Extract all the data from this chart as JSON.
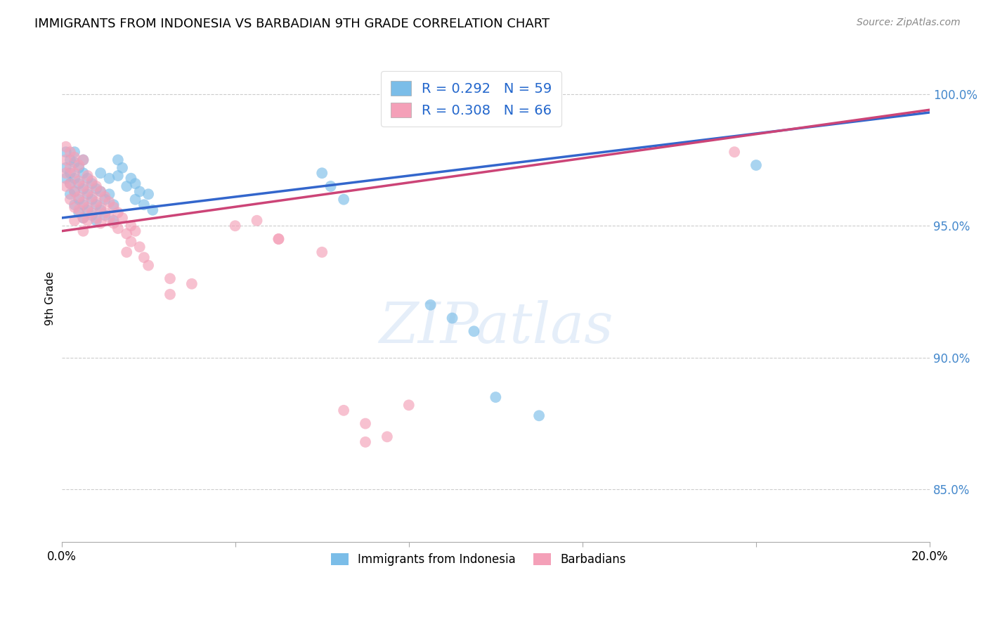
{
  "title": "IMMIGRANTS FROM INDONESIA VS BARBADIAN 9TH GRADE CORRELATION CHART",
  "source": "Source: ZipAtlas.com",
  "ylabel": "9th Grade",
  "yticks": [
    "85.0%",
    "90.0%",
    "95.0%",
    "100.0%"
  ],
  "ytick_vals": [
    0.85,
    0.9,
    0.95,
    1.0
  ],
  "legend_blue": "R = 0.292   N = 59",
  "legend_pink": "R = 0.308   N = 66",
  "legend_label_blue": "Immigrants from Indonesia",
  "legend_label_pink": "Barbadians",
  "blue_color": "#7bbde8",
  "pink_color": "#f4a0b8",
  "trendline_blue": "#3366cc",
  "trendline_pink": "#cc4477",
  "xlim": [
    0.0,
    0.2
  ],
  "ylim": [
    0.83,
    1.015
  ],
  "blue_x": [
    0.001,
    0.001,
    0.001,
    0.002,
    0.002,
    0.002,
    0.002,
    0.003,
    0.003,
    0.003,
    0.003,
    0.003,
    0.004,
    0.004,
    0.004,
    0.004,
    0.005,
    0.005,
    0.005,
    0.005,
    0.005,
    0.006,
    0.006,
    0.006,
    0.007,
    0.007,
    0.007,
    0.008,
    0.008,
    0.008,
    0.009,
    0.009,
    0.009,
    0.01,
    0.01,
    0.011,
    0.011,
    0.012,
    0.012,
    0.013,
    0.013,
    0.014,
    0.015,
    0.016,
    0.017,
    0.017,
    0.018,
    0.019,
    0.02,
    0.021,
    0.06,
    0.062,
    0.065,
    0.085,
    0.09,
    0.095,
    0.1,
    0.11,
    0.16
  ],
  "blue_y": [
    0.978,
    0.972,
    0.968,
    0.975,
    0.97,
    0.966,
    0.962,
    0.978,
    0.974,
    0.968,
    0.963,
    0.958,
    0.972,
    0.966,
    0.96,
    0.955,
    0.975,
    0.97,
    0.964,
    0.958,
    0.953,
    0.968,
    0.962,
    0.956,
    0.966,
    0.96,
    0.954,
    0.964,
    0.958,
    0.952,
    0.97,
    0.963,
    0.956,
    0.96,
    0.954,
    0.968,
    0.962,
    0.958,
    0.952,
    0.975,
    0.969,
    0.972,
    0.965,
    0.968,
    0.966,
    0.96,
    0.963,
    0.958,
    0.962,
    0.956,
    0.97,
    0.965,
    0.96,
    0.92,
    0.915,
    0.91,
    0.885,
    0.878,
    0.973
  ],
  "pink_x": [
    0.001,
    0.001,
    0.001,
    0.001,
    0.002,
    0.002,
    0.002,
    0.002,
    0.003,
    0.003,
    0.003,
    0.003,
    0.003,
    0.004,
    0.004,
    0.004,
    0.004,
    0.005,
    0.005,
    0.005,
    0.005,
    0.005,
    0.006,
    0.006,
    0.006,
    0.006,
    0.007,
    0.007,
    0.007,
    0.008,
    0.008,
    0.008,
    0.009,
    0.009,
    0.009,
    0.01,
    0.01,
    0.011,
    0.011,
    0.012,
    0.012,
    0.013,
    0.013,
    0.014,
    0.015,
    0.015,
    0.016,
    0.016,
    0.017,
    0.018,
    0.019,
    0.02,
    0.025,
    0.025,
    0.03,
    0.04,
    0.05,
    0.06,
    0.065,
    0.07,
    0.075,
    0.08,
    0.045,
    0.05,
    0.155,
    0.07
  ],
  "pink_y": [
    0.98,
    0.975,
    0.97,
    0.965,
    0.978,
    0.972,
    0.966,
    0.96,
    0.976,
    0.97,
    0.963,
    0.957,
    0.952,
    0.973,
    0.967,
    0.961,
    0.956,
    0.975,
    0.965,
    0.959,
    0.953,
    0.948,
    0.969,
    0.963,
    0.957,
    0.952,
    0.967,
    0.961,
    0.955,
    0.965,
    0.959,
    0.953,
    0.963,
    0.957,
    0.951,
    0.961,
    0.955,
    0.959,
    0.953,
    0.957,
    0.951,
    0.955,
    0.949,
    0.953,
    0.947,
    0.94,
    0.95,
    0.944,
    0.948,
    0.942,
    0.938,
    0.935,
    0.93,
    0.924,
    0.928,
    0.95,
    0.945,
    0.94,
    0.88,
    0.875,
    0.87,
    0.882,
    0.952,
    0.945,
    0.978,
    0.868
  ]
}
